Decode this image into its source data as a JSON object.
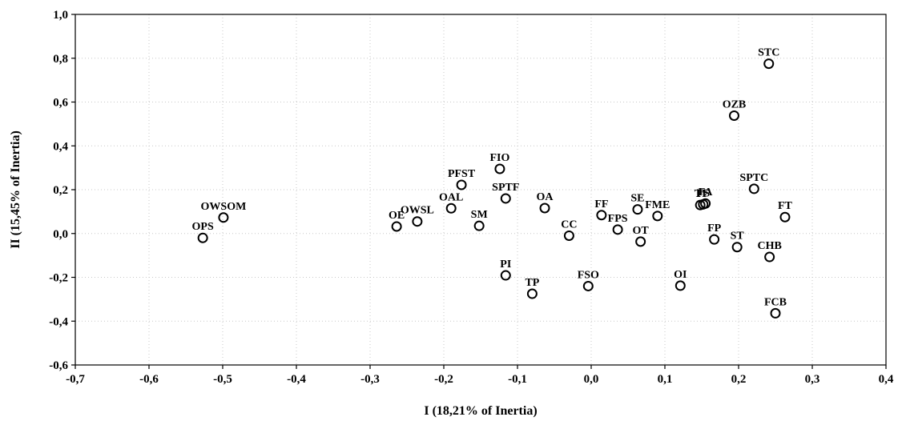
{
  "chart_data": {
    "type": "scatter",
    "xlabel": "I (18,21% of Inertia)",
    "ylabel": "II (15,45% of Inertia)",
    "xlim": [
      -0.7,
      0.4
    ],
    "ylim": [
      -0.6,
      1.0
    ],
    "x_ticks": [
      "-0,7",
      "-0,6",
      "-0,5",
      "-0,4",
      "-0,3",
      "-0,2",
      "-0,1",
      "0,0",
      "0,1",
      "0,2",
      "0,3",
      "0,4"
    ],
    "y_ticks": [
      "1,0",
      "0,8",
      "0,6",
      "0,4",
      "0,2",
      "0,0",
      "-0,2",
      "-0,4",
      "-0,6"
    ],
    "grid": true,
    "points": [
      {
        "label": "STC",
        "x": 0.241,
        "y": 0.775
      },
      {
        "label": "OZB",
        "x": 0.194,
        "y": 0.538
      },
      {
        "label": "SPTC",
        "x": 0.221,
        "y": 0.204
      },
      {
        "label": "FT",
        "x": 0.263,
        "y": 0.075
      },
      {
        "label": "CHB",
        "x": 0.242,
        "y": -0.107
      },
      {
        "label": "ST",
        "x": 0.198,
        "y": -0.062
      },
      {
        "label": "FP",
        "x": 0.167,
        "y": -0.027
      },
      {
        "label": "FCB",
        "x": 0.25,
        "y": -0.364
      },
      {
        "label": "TI",
        "x": 0.148,
        "y": 0.13
      },
      {
        "label": "FS",
        "x": 0.152,
        "y": 0.133
      },
      {
        "label": "FA",
        "x": 0.155,
        "y": 0.137
      },
      {
        "label": "FME",
        "x": 0.09,
        "y": 0.08
      },
      {
        "label": "SE",
        "x": 0.063,
        "y": 0.11
      },
      {
        "label": "OT",
        "x": 0.067,
        "y": -0.037
      },
      {
        "label": "FPS",
        "x": 0.036,
        "y": 0.018
      },
      {
        "label": "FF",
        "x": 0.014,
        "y": 0.084
      },
      {
        "label": "OI",
        "x": 0.121,
        "y": -0.238
      },
      {
        "label": "FSO",
        "x": -0.004,
        "y": -0.24
      },
      {
        "label": "CC",
        "x": -0.03,
        "y": -0.01
      },
      {
        "label": "OA",
        "x": -0.063,
        "y": 0.116
      },
      {
        "label": "TP",
        "x": -0.08,
        "y": -0.275
      },
      {
        "label": "PI",
        "x": -0.116,
        "y": -0.191
      },
      {
        "label": "SPTF",
        "x": -0.116,
        "y": 0.16
      },
      {
        "label": "FIO",
        "x": -0.124,
        "y": 0.295
      },
      {
        "label": "PFST",
        "x": -0.176,
        "y": 0.222
      },
      {
        "label": "SM",
        "x": -0.152,
        "y": 0.035
      },
      {
        "label": "OAL",
        "x": -0.19,
        "y": 0.115
      },
      {
        "label": "OWSL",
        "x": -0.236,
        "y": 0.055
      },
      {
        "label": "OE",
        "x": -0.264,
        "y": 0.032
      },
      {
        "label": "OWSOM",
        "x": -0.499,
        "y": 0.073
      },
      {
        "label": "OPS",
        "x": -0.527,
        "y": -0.02
      }
    ]
  }
}
